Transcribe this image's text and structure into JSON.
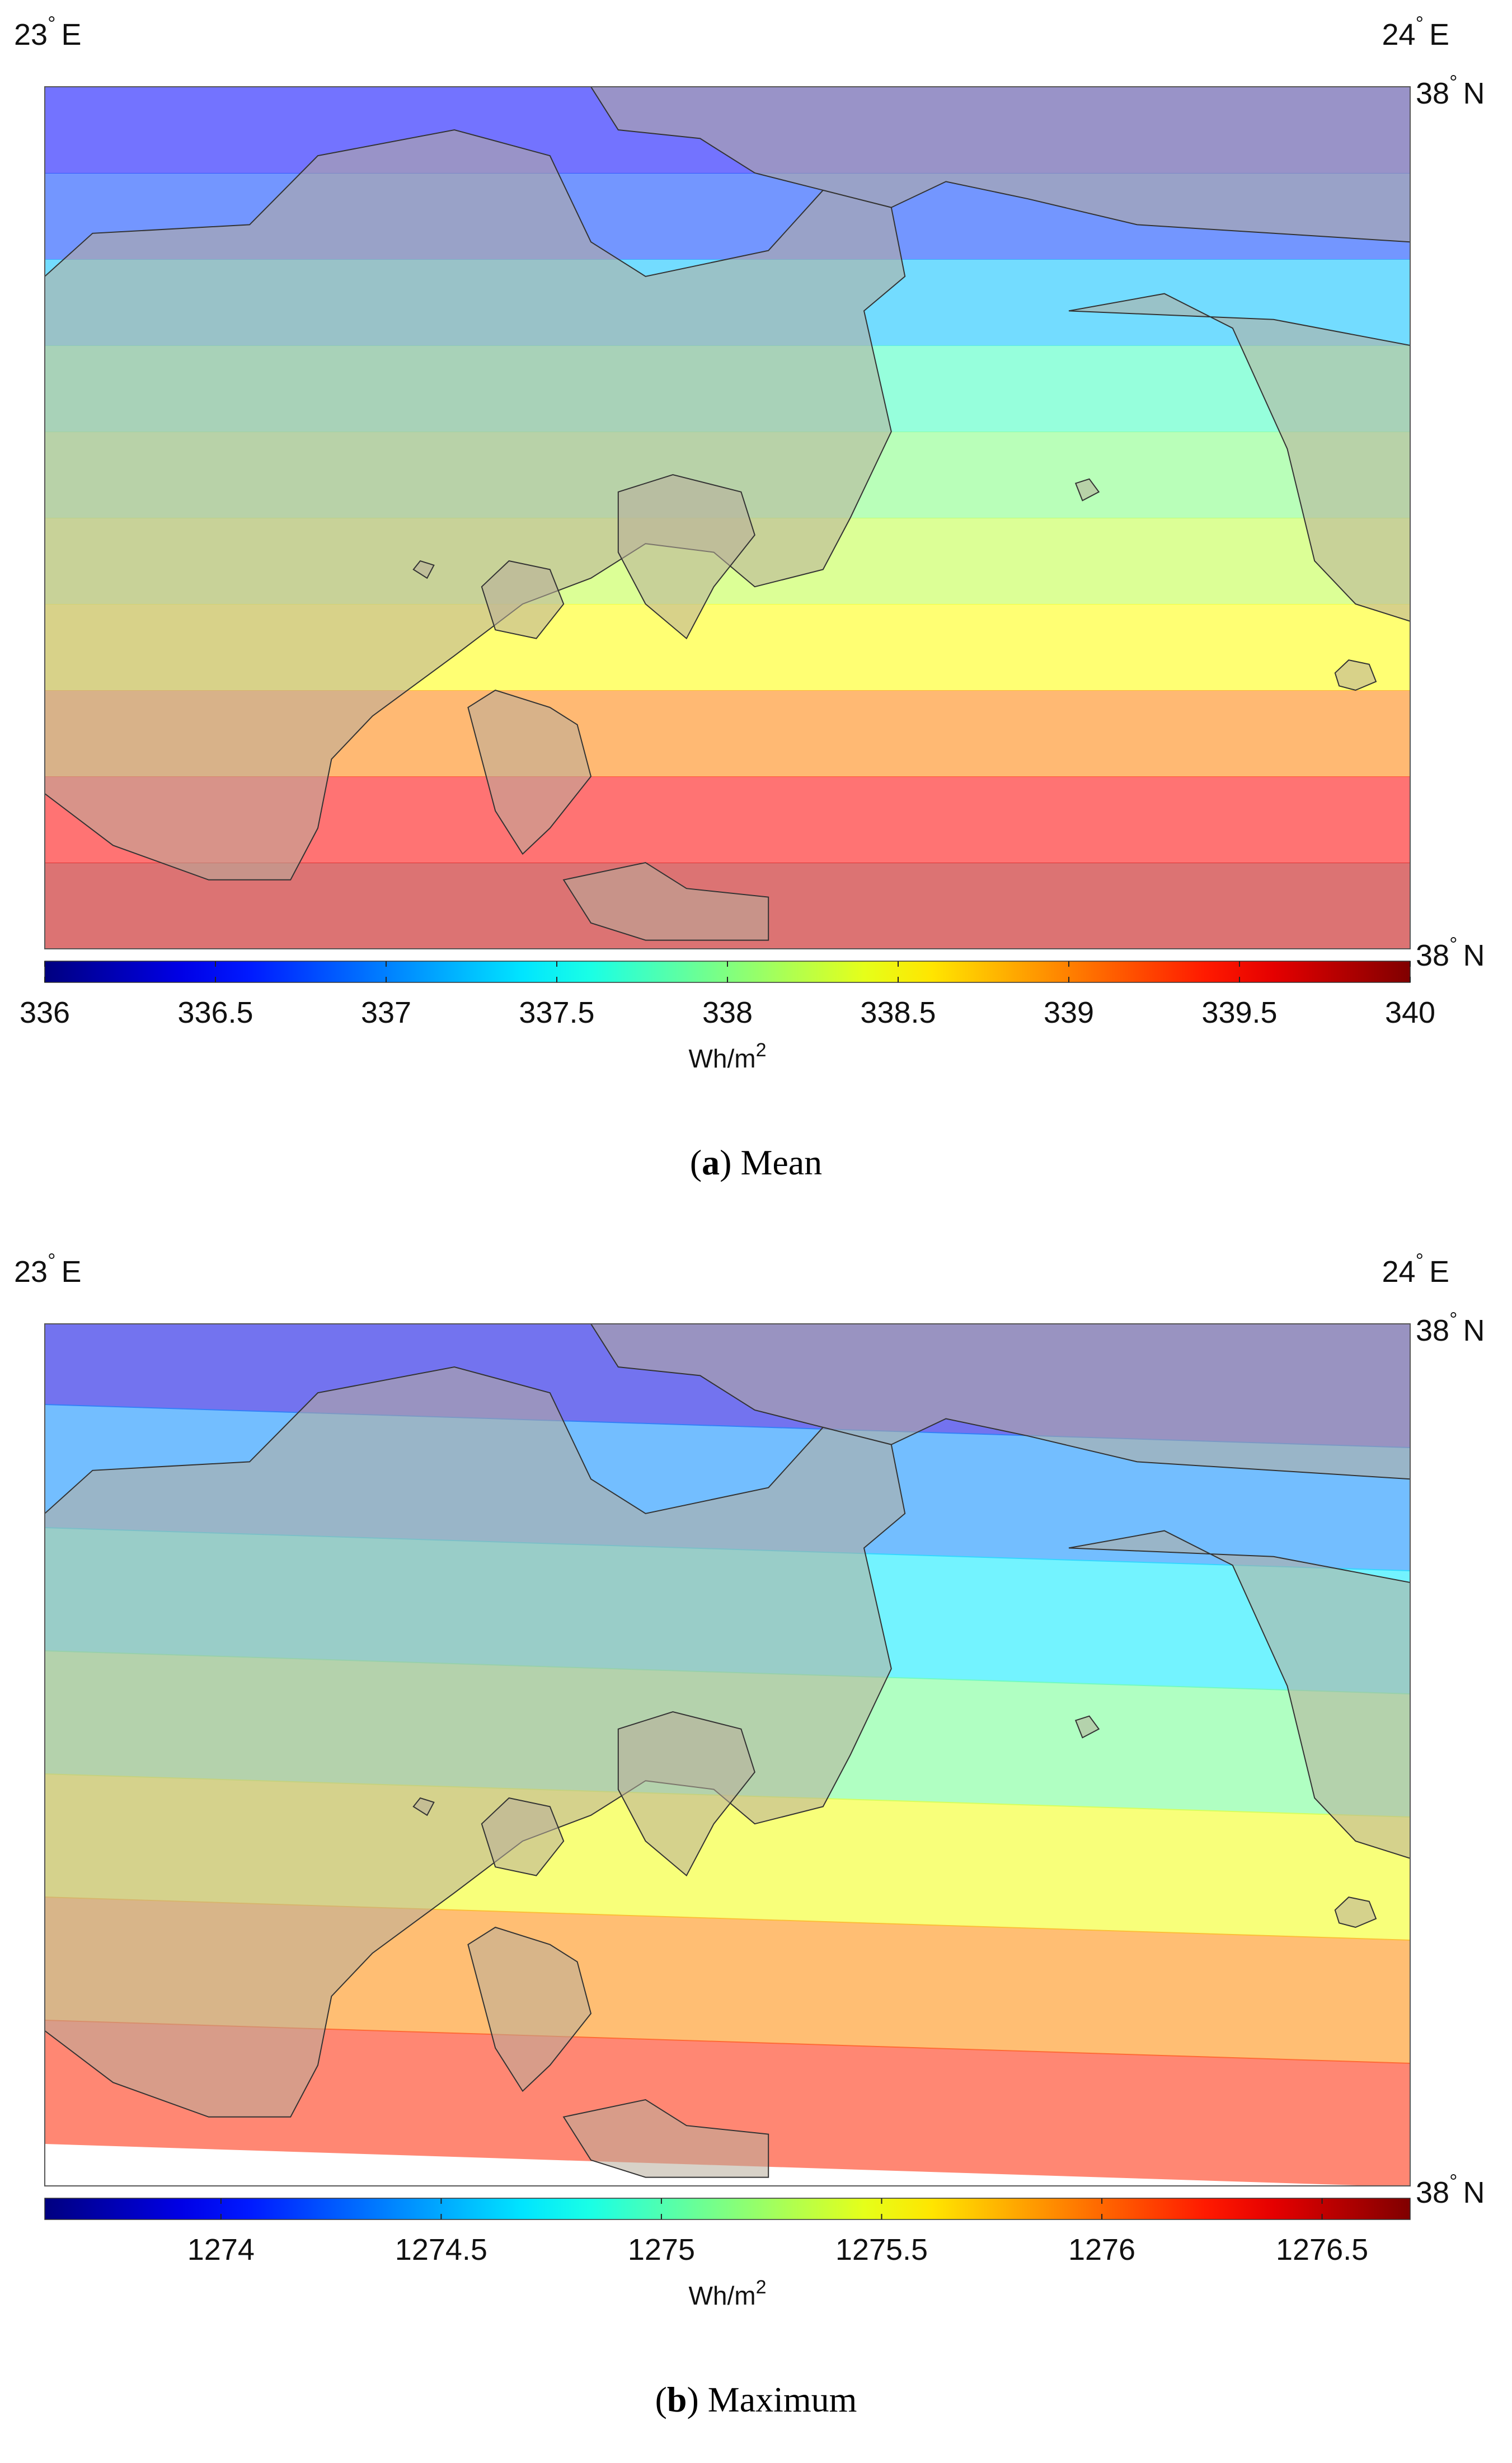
{
  "figures": [
    {
      "caption_letter": "a",
      "caption_text": "Mean",
      "coord_labels": {
        "lon_left": "23",
        "lon_right": "24",
        "lat_top": "38",
        "lat_bottom": "38",
        "east": "E",
        "north": "N",
        "degree": "°"
      },
      "colorbar_unit": "Wh/m",
      "colorbar_unit_sup": "2"
    },
    {
      "caption_letter": "b",
      "caption_text": "Maximum",
      "coord_labels": {
        "lon_left": "23",
        "lon_right": "24",
        "lat_top": "38",
        "lat_bottom": "38",
        "east": "E",
        "north": "N",
        "degree": "°"
      },
      "colorbar_unit": "Wh/m",
      "colorbar_unit_sup": "2"
    }
  ],
  "chart_data": [
    {
      "type": "heatmap",
      "title": "",
      "colormap": "jet",
      "colorbar_range": [
        336,
        340
      ],
      "colorbar_ticks": [
        "336",
        "336.5",
        "337",
        "337.5",
        "338",
        "338.5",
        "339",
        "339.5",
        "340"
      ],
      "colorbar_tick_values": [
        336,
        336.5,
        337,
        337.5,
        338,
        338.5,
        339,
        339.5,
        340
      ],
      "xlim": [
        23,
        24
      ],
      "ylim": [
        37.9,
        38.0
      ],
      "band_values_top_to_bottom": [
        336.5,
        336.75,
        337.25,
        337.75,
        338.0,
        338.25,
        338.5,
        339.0,
        339.5,
        339.75
      ]
    },
    {
      "type": "heatmap",
      "title": "",
      "colormap": "jet",
      "colorbar_range": [
        1273.6,
        1276.7
      ],
      "colorbar_ticks": [
        "1274",
        "1274.5",
        "1275",
        "1275.5",
        "1276",
        "1276.5"
      ],
      "colorbar_tick_values": [
        1274,
        1274.5,
        1275,
        1275.5,
        1276,
        1276.5
      ],
      "xlim": [
        23,
        24
      ],
      "ylim": [
        37.9,
        38.0
      ],
      "band_values_top_to_bottom": [
        1273.9,
        1274.4,
        1274.7,
        1275.1,
        1275.5,
        1275.9,
        1276.2
      ]
    }
  ]
}
